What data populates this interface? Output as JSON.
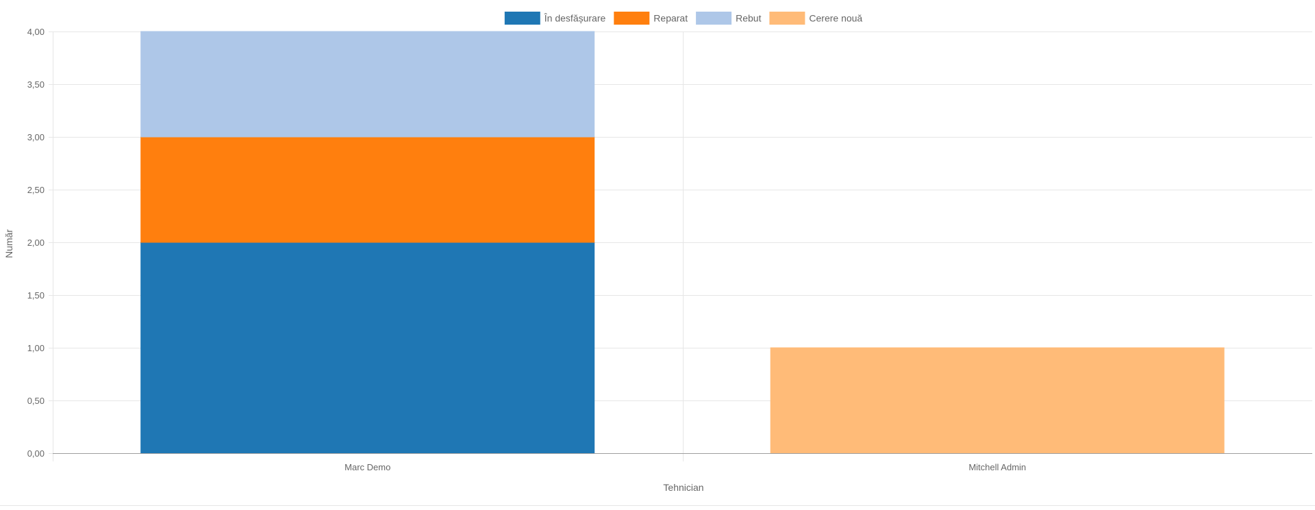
{
  "chart_data": {
    "type": "bar",
    "stacked": true,
    "categories": [
      "Marc Demo",
      "Mitchell Admin"
    ],
    "series": [
      {
        "name": "În desfășurare",
        "values": [
          2,
          0
        ],
        "color": "#1f77b4"
      },
      {
        "name": "Reparat",
        "values": [
          1,
          0
        ],
        "color": "#ff7f0e"
      },
      {
        "name": "Rebut",
        "values": [
          1,
          0
        ],
        "color": "#aec7e8"
      },
      {
        "name": "Cerere nouă",
        "values": [
          0,
          1
        ],
        "color": "#ffbb78"
      }
    ],
    "xlabel": "Tehnician",
    "ylabel": "Număr",
    "ylim": [
      0,
      4
    ],
    "yticks": [
      "0,00",
      "0,50",
      "1,00",
      "1,50",
      "2,00",
      "2,50",
      "3,00",
      "3,50",
      "4,00"
    ],
    "legend_position": "top-center",
    "grid": true
  }
}
